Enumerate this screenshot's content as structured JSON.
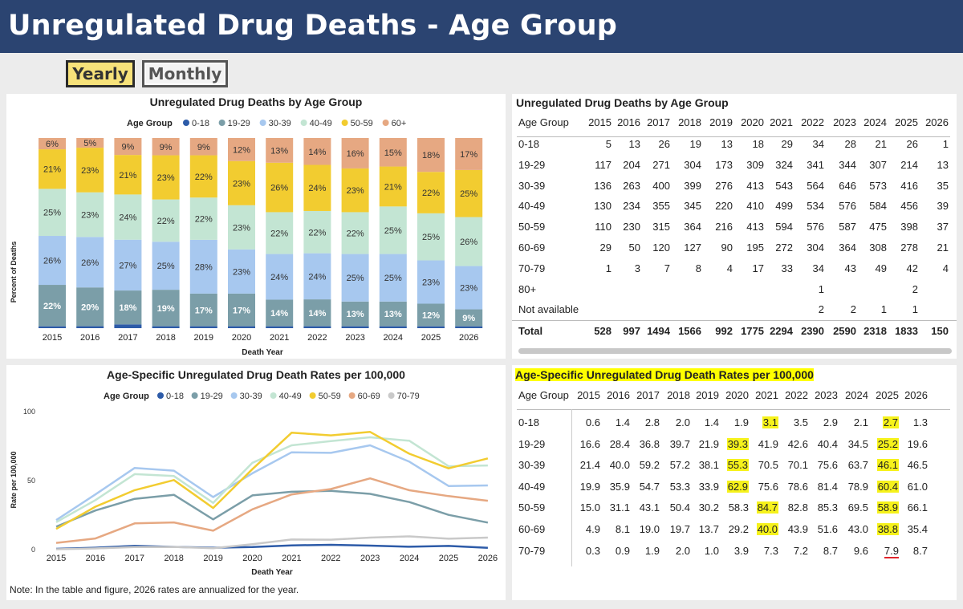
{
  "header": {
    "title": "Unregulated Drug Deaths - Age Group"
  },
  "toggle": {
    "yearly": "Yearly",
    "monthly": "Monthly",
    "selected": "Yearly"
  },
  "colors": {
    "age_0_18": "#2d5ba8",
    "age_19_29": "#7b9ea8",
    "age_30_39": "#a7c8ef",
    "age_40_49": "#c3e5d3",
    "age_50_59": "#f2cc30",
    "age_60_69": "#e6a882",
    "age_60_plus": "#e6a882",
    "age_70_79": "#c9c9c9",
    "header": "#2b4471",
    "highlight": "#ffff00"
  },
  "stacked_chart": {
    "title": "Unregulated Drug Deaths by Age Group",
    "legend_title": "Age Group",
    "ylabel": "Percent of Deaths",
    "xlabel": "Death Year"
  },
  "table1": {
    "title": "Unregulated Drug Deaths by Age Group",
    "col_header": "Age Group",
    "years": [
      "2015",
      "2016",
      "2017",
      "2018",
      "2019",
      "2020",
      "2021",
      "2022",
      "2023",
      "2024",
      "2025",
      "2026"
    ],
    "rows": [
      {
        "label": "0-18",
        "values": [
          "5",
          "13",
          "26",
          "19",
          "13",
          "18",
          "29",
          "34",
          "28",
          "21",
          "26",
          "1"
        ]
      },
      {
        "label": "19-29",
        "values": [
          "117",
          "204",
          "271",
          "304",
          "173",
          "309",
          "324",
          "341",
          "344",
          "307",
          "214",
          "13"
        ]
      },
      {
        "label": "30-39",
        "values": [
          "136",
          "263",
          "400",
          "399",
          "276",
          "413",
          "543",
          "564",
          "646",
          "573",
          "416",
          "35"
        ]
      },
      {
        "label": "40-49",
        "values": [
          "130",
          "234",
          "355",
          "345",
          "220",
          "410",
          "499",
          "534",
          "576",
          "584",
          "456",
          "39"
        ]
      },
      {
        "label": "50-59",
        "values": [
          "110",
          "230",
          "315",
          "364",
          "216",
          "413",
          "594",
          "576",
          "587",
          "475",
          "398",
          "37"
        ]
      },
      {
        "label": "60-69",
        "values": [
          "29",
          "50",
          "120",
          "127",
          "90",
          "195",
          "272",
          "304",
          "364",
          "308",
          "278",
          "21"
        ]
      },
      {
        "label": "70-79",
        "values": [
          "1",
          "3",
          "7",
          "8",
          "4",
          "17",
          "33",
          "34",
          "43",
          "49",
          "42",
          "4"
        ]
      },
      {
        "label": "80+",
        "values": [
          "",
          "",
          "",
          "",
          "",
          "",
          "",
          "1",
          "",
          "",
          "2",
          ""
        ]
      },
      {
        "label": "Not available",
        "values": [
          "",
          "",
          "",
          "",
          "",
          "",
          "",
          "2",
          "2",
          "1",
          "1",
          ""
        ]
      },
      {
        "label": "Total",
        "values": [
          "528",
          "997",
          "1494",
          "1566",
          "992",
          "1775",
          "2294",
          "2390",
          "2590",
          "2318",
          "1833",
          "150"
        ]
      }
    ]
  },
  "table2": {
    "title": "Age-Specific Unregulated Drug Death Rates per 100,000",
    "col_header": "Age Group",
    "years": [
      "2015",
      "2016",
      "2017",
      "2018",
      "2019",
      "2020",
      "2021",
      "2022",
      "2023",
      "2024",
      "2025",
      "2026"
    ],
    "rows": [
      {
        "label": "0-18",
        "values": [
          "0.6",
          "1.4",
          "2.8",
          "2.0",
          "1.4",
          "1.9",
          "3.1",
          "3.5",
          "2.9",
          "2.1",
          "2.7",
          "1.3"
        ],
        "highlight": [
          6,
          10
        ]
      },
      {
        "label": "19-29",
        "values": [
          "16.6",
          "28.4",
          "36.8",
          "39.7",
          "21.9",
          "39.3",
          "41.9",
          "42.6",
          "40.4",
          "34.5",
          "25.2",
          "19.6"
        ],
        "highlight": [
          5,
          10
        ]
      },
      {
        "label": "30-39",
        "values": [
          "21.4",
          "40.0",
          "59.2",
          "57.2",
          "38.1",
          "55.3",
          "70.5",
          "70.1",
          "75.6",
          "63.7",
          "46.1",
          "46.5"
        ],
        "highlight": [
          5,
          10
        ]
      },
      {
        "label": "40-49",
        "values": [
          "19.9",
          "35.9",
          "54.7",
          "53.3",
          "33.9",
          "62.9",
          "75.6",
          "78.6",
          "81.4",
          "78.9",
          "60.4",
          "61.0"
        ],
        "highlight": [
          5,
          10
        ]
      },
      {
        "label": "50-59",
        "values": [
          "15.0",
          "31.1",
          "43.1",
          "50.4",
          "30.2",
          "58.3",
          "84.7",
          "82.8",
          "85.3",
          "69.5",
          "58.9",
          "66.1"
        ],
        "highlight": [
          6,
          10
        ]
      },
      {
        "label": "60-69",
        "values": [
          "4.9",
          "8.1",
          "19.0",
          "19.7",
          "13.7",
          "29.2",
          "40.0",
          "43.9",
          "51.6",
          "43.0",
          "38.8",
          "35.4"
        ],
        "highlight": [
          6,
          10
        ]
      },
      {
        "label": "70-79",
        "values": [
          "0.3",
          "0.9",
          "1.9",
          "2.0",
          "1.0",
          "3.9",
          "7.3",
          "7.2",
          "8.7",
          "9.6",
          "7.9",
          "8.7"
        ],
        "highlight": [],
        "underline": [
          10
        ]
      }
    ]
  },
  "line_chart": {
    "title": "Age-Specific Unregulated Drug Death Rates per 100,000",
    "legend_title": "Age Group",
    "ylabel": "Rate per 100,000",
    "xlabel": "Death Year"
  },
  "note": "Note: In the table and figure, 2026 rates are annualized for the year.",
  "chart_data": [
    {
      "type": "bar",
      "stacked": true,
      "title": "Unregulated Drug Deaths by Age Group",
      "xlabel": "Death Year",
      "ylabel": "Percent of Deaths",
      "ylim": [
        0,
        100
      ],
      "categories": [
        "2015",
        "2016",
        "2017",
        "2018",
        "2019",
        "2020",
        "2021",
        "2022",
        "2023",
        "2024",
        "2025",
        "2026"
      ],
      "series": [
        {
          "name": "0-18",
          "color": "#2d5ba8",
          "values": [
            1,
            1,
            2,
            1,
            1,
            1,
            1,
            1,
            1,
            1,
            1,
            1
          ]
        },
        {
          "name": "19-29",
          "color": "#7b9ea8",
          "values": [
            22,
            20,
            18,
            19,
            17,
            17,
            14,
            14,
            13,
            13,
            12,
            9
          ]
        },
        {
          "name": "30-39",
          "color": "#a7c8ef",
          "values": [
            26,
            26,
            27,
            25,
            28,
            23,
            24,
            24,
            25,
            25,
            23,
            23
          ]
        },
        {
          "name": "40-49",
          "color": "#c3e5d3",
          "values": [
            25,
            23,
            24,
            22,
            22,
            23,
            22,
            22,
            22,
            25,
            25,
            26
          ]
        },
        {
          "name": "50-59",
          "color": "#f2cc30",
          "values": [
            21,
            23,
            21,
            23,
            22,
            23,
            26,
            24,
            23,
            21,
            22,
            25
          ]
        },
        {
          "name": "60+",
          "color": "#e6a882",
          "values": [
            6,
            5,
            9,
            9,
            9,
            12,
            13,
            14,
            16,
            15,
            18,
            17
          ]
        }
      ],
      "data_labels": {
        "19-29": [
          "22%",
          "20%",
          "18%",
          "19%",
          "17%",
          "17%",
          "14%",
          "14%",
          "13%",
          "13%",
          "12%",
          "9%"
        ],
        "30-39": [
          "26%",
          "26%",
          "27%",
          "25%",
          "28%",
          "23%",
          "24%",
          "24%",
          "25%",
          "25%",
          "23%",
          "23%"
        ],
        "40-49": [
          "25%",
          "23%",
          "24%",
          "22%",
          "22%",
          "23%",
          "22%",
          "22%",
          "22%",
          "25%",
          "25%",
          "26%"
        ],
        "50-59": [
          "21%",
          "23%",
          "21%",
          "23%",
          "22%",
          "23%",
          "26%",
          "24%",
          "23%",
          "21%",
          "22%",
          "25%"
        ],
        "60+": [
          "6%",
          "5%",
          "9%",
          "9%",
          "9%",
          "12%",
          "13%",
          "14%",
          "16%",
          "15%",
          "18%",
          "17%"
        ]
      }
    },
    {
      "type": "line",
      "title": "Age-Specific Unregulated Drug Death Rates per 100,000",
      "xlabel": "Death Year",
      "ylabel": "Rate per 100,000",
      "ylim": [
        0,
        100
      ],
      "yticks": [
        "0",
        "50",
        "100"
      ],
      "x": [
        "2015",
        "2016",
        "2017",
        "2018",
        "2019",
        "2020",
        "2021",
        "2022",
        "2023",
        "2024",
        "2025",
        "2026"
      ],
      "series": [
        {
          "name": "0-18",
          "color": "#2d5ba8",
          "values": [
            0.6,
            1.4,
            2.8,
            2.0,
            1.4,
            1.9,
            3.1,
            3.5,
            2.9,
            2.1,
            2.7,
            1.3
          ]
        },
        {
          "name": "19-29",
          "color": "#7b9ea8",
          "values": [
            16.6,
            28.4,
            36.8,
            39.7,
            21.9,
            39.3,
            41.9,
            42.6,
            40.4,
            34.5,
            25.2,
            19.6
          ]
        },
        {
          "name": "30-39",
          "color": "#a7c8ef",
          "values": [
            21.4,
            40.0,
            59.2,
            57.2,
            38.1,
            55.3,
            70.5,
            70.1,
            75.6,
            63.7,
            46.1,
            46.5
          ]
        },
        {
          "name": "40-49",
          "color": "#c3e5d3",
          "values": [
            19.9,
            35.9,
            54.7,
            53.3,
            33.9,
            62.9,
            75.6,
            78.6,
            81.4,
            78.9,
            60.4,
            61.0
          ]
        },
        {
          "name": "50-59",
          "color": "#f2cc30",
          "values": [
            15.0,
            31.1,
            43.1,
            50.4,
            30.2,
            58.3,
            84.7,
            82.8,
            85.3,
            69.5,
            58.9,
            66.1
          ]
        },
        {
          "name": "60-69",
          "color": "#e6a882",
          "values": [
            4.9,
            8.1,
            19.0,
            19.7,
            13.7,
            29.2,
            40.0,
            43.9,
            51.6,
            43.0,
            38.8,
            35.4
          ]
        },
        {
          "name": "70-79",
          "color": "#c9c9c9",
          "values": [
            0.3,
            0.9,
            1.9,
            2.0,
            1.0,
            3.9,
            7.3,
            7.2,
            8.7,
            9.6,
            7.9,
            8.7
          ]
        }
      ]
    }
  ]
}
